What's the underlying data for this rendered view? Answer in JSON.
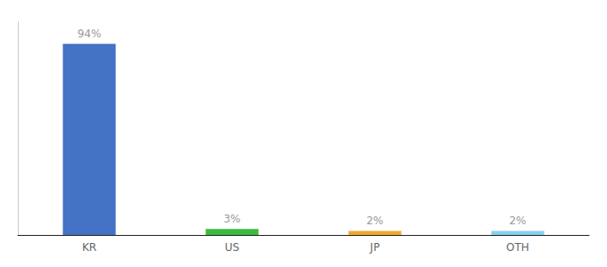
{
  "chart_data": {
    "type": "bar",
    "categories": [
      "KR",
      "US",
      "JP",
      "OTH"
    ],
    "values": [
      94,
      3,
      2,
      2
    ],
    "value_labels": [
      "94%",
      "3%",
      "2%",
      "2%"
    ],
    "colors": [
      "#4472c4",
      "#3dba3d",
      "#f0a830",
      "#85d0f0"
    ],
    "ylim": [
      0,
      105
    ],
    "data_labels": true,
    "tick_labels": "x",
    "grid": false
  }
}
